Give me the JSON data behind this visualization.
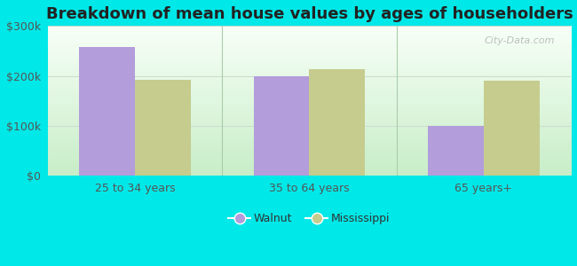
{
  "title": "Breakdown of mean house values by ages of householders",
  "categories": [
    "25 to 34 years",
    "35 to 64 years",
    "65 years+"
  ],
  "walnut_values": [
    258000,
    200000,
    100000
  ],
  "mississippi_values": [
    193000,
    213000,
    190000
  ],
  "walnut_color": "#b39ddb",
  "mississippi_color": "#c5cc8e",
  "background_outer": "#00e8e8",
  "ylim": [
    0,
    300000
  ],
  "yticks": [
    0,
    100000,
    200000,
    300000
  ],
  "ytick_labels": [
    "$0",
    "$100k",
    "$200k",
    "$300k"
  ],
  "legend_walnut": "Walnut",
  "legend_mississippi": "Mississippi",
  "bar_width": 0.32,
  "title_fontsize": 13,
  "tick_fontsize": 9,
  "legend_fontsize": 9,
  "watermark": "City-Data.com"
}
